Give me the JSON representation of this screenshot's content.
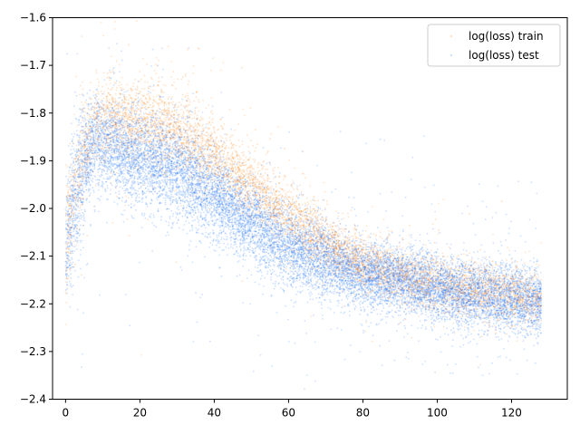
{
  "chart_data": {
    "type": "scatter",
    "title": "",
    "xlabel": "",
    "ylabel": "",
    "xlim": [
      -3.5,
      135
    ],
    "ylim": [
      -2.4,
      -1.6
    ],
    "xticks": [
      0,
      20,
      40,
      60,
      80,
      100,
      120
    ],
    "yticks": [
      -2.4,
      -2.3,
      -2.2,
      -2.1,
      -2.0,
      -1.9,
      -1.8,
      -1.7,
      -1.6
    ],
    "ytick_labels": [
      "−2.4",
      "−2.3",
      "−2.2",
      "−2.1",
      "−2.0",
      "−1.9",
      "−1.8",
      "−1.7",
      "−1.6"
    ],
    "grid": false,
    "legend_position": "top-right",
    "series": [
      {
        "name": "log(loss) train",
        "color": "#ff7f0e",
        "x_range": [
          0,
          128
        ],
        "trend": {
          "x": [
            0,
            2,
            5,
            8,
            12,
            18,
            25,
            32,
            40,
            50,
            60,
            70,
            80,
            90,
            100,
            110,
            120,
            128
          ],
          "y": [
            -2.08,
            -1.97,
            -1.88,
            -1.82,
            -1.81,
            -1.82,
            -1.82,
            -1.85,
            -1.89,
            -1.95,
            -2.02,
            -2.07,
            -2.12,
            -2.14,
            -2.16,
            -2.17,
            -2.18,
            -2.19
          ]
        }
      },
      {
        "name": "log(loss) test",
        "color": "#1f77ff",
        "x_range": [
          0,
          128
        ],
        "trend": {
          "x": [
            0,
            2,
            5,
            8,
            12,
            18,
            25,
            32,
            40,
            50,
            60,
            70,
            80,
            90,
            100,
            110,
            120,
            128
          ],
          "y": [
            -2.1,
            -1.99,
            -1.9,
            -1.86,
            -1.87,
            -1.89,
            -1.9,
            -1.93,
            -1.97,
            -2.03,
            -2.08,
            -2.11,
            -2.14,
            -2.15,
            -2.17,
            -2.18,
            -2.19,
            -2.2
          ]
        }
      }
    ]
  }
}
